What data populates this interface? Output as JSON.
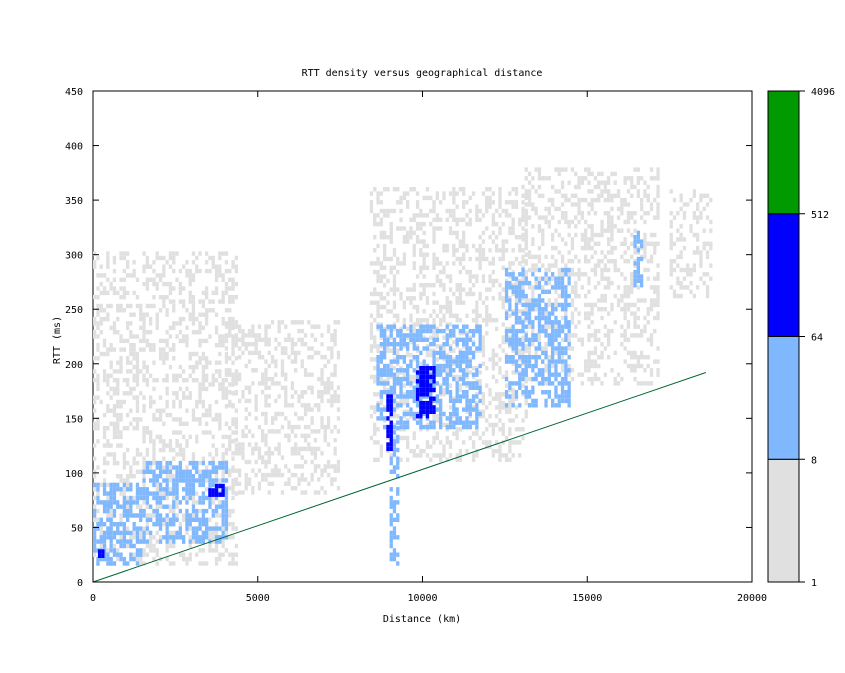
{
  "chart_data": {
    "type": "heatmap",
    "title": "RTT density versus geographical distance",
    "xlabel": "Distance (km)",
    "ylabel": "RTT (ms)",
    "xlim": [
      0,
      20000
    ],
    "ylim": [
      0,
      450
    ],
    "x_ticks": [
      0,
      5000,
      10000,
      15000,
      20000
    ],
    "y_ticks": [
      0,
      50,
      100,
      150,
      200,
      250,
      300,
      350,
      400,
      450
    ],
    "grid": false,
    "colorbar": {
      "scale": "log",
      "ticks": [
        1,
        8,
        64,
        512,
        4096
      ],
      "bins": [
        {
          "from": 1,
          "to": 8,
          "color": "#e0e0e0"
        },
        {
          "from": 8,
          "to": 64,
          "color": "#80b8ff"
        },
        {
          "from": 64,
          "to": 512,
          "color": "#0000ff"
        },
        {
          "from": 512,
          "to": 4096,
          "color": "#009900"
        }
      ]
    },
    "line_series": {
      "color": "#006633",
      "x": [
        0,
        18600
      ],
      "y": [
        0,
        192
      ]
    },
    "density_regions": [
      {
        "level": 1,
        "x": [
          0,
          4400
        ],
        "y": [
          15,
          300
        ]
      },
      {
        "level": 1,
        "x": [
          4000,
          7500
        ],
        "y": [
          80,
          240
        ]
      },
      {
        "level": 1,
        "x": [
          8400,
          13200
        ],
        "y": [
          110,
          360
        ]
      },
      {
        "level": 1,
        "x": [
          13000,
          17200
        ],
        "y": [
          180,
          380
        ]
      },
      {
        "level": 1,
        "x": [
          17500,
          18800
        ],
        "y": [
          260,
          360
        ]
      },
      {
        "level": 8,
        "x": [
          0,
          1500
        ],
        "y": [
          15,
          90
        ]
      },
      {
        "level": 8,
        "x": [
          1500,
          4100
        ],
        "y": [
          35,
          110
        ]
      },
      {
        "level": 8,
        "x": [
          8600,
          11800
        ],
        "y": [
          140,
          235
        ]
      },
      {
        "level": 8,
        "x": [
          9000,
          9300
        ],
        "y": [
          15,
          140
        ]
      },
      {
        "level": 8,
        "x": [
          12500,
          14500
        ],
        "y": [
          160,
          285
        ]
      },
      {
        "level": 8,
        "x": [
          16400,
          16700
        ],
        "y": [
          270,
          320
        ]
      },
      {
        "level": 64,
        "x": [
          150,
          350
        ],
        "y": [
          22,
          28
        ]
      },
      {
        "level": 64,
        "x": [
          3500,
          4000
        ],
        "y": [
          78,
          90
        ]
      },
      {
        "level": 64,
        "x": [
          8900,
          9100
        ],
        "y": [
          120,
          170
        ]
      },
      {
        "level": 64,
        "x": [
          9800,
          10400
        ],
        "y": [
          150,
          195
        ]
      }
    ]
  }
}
